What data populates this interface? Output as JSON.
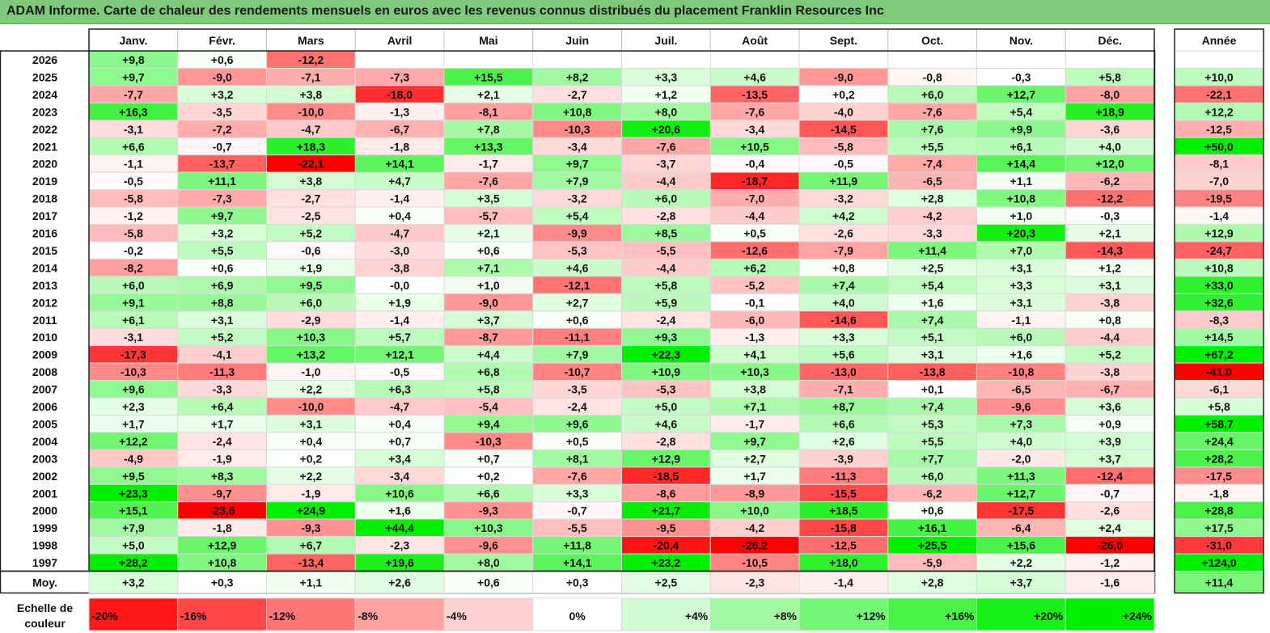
{
  "title": "ADAM Informe. Carte de chaleur des rendements mensuels en euros avec les revenus connus distribués du placement Franklin Resources Inc",
  "chart_data": {
    "type": "heatmap",
    "months": [
      "Janv.",
      "Févr.",
      "Mars",
      "Avril",
      "Mai",
      "Juin",
      "Juil.",
      "Août",
      "Sept.",
      "Oct.",
      "Nov.",
      "Déc."
    ],
    "year_header": "Année",
    "rows": [
      {
        "label": "2026",
        "values": [
          "+9,8",
          "+0,6",
          "-12,2",
          "",
          "",
          "",
          "",
          "",
          "",
          "",
          "",
          ""
        ],
        "year": ""
      },
      {
        "label": "2025",
        "values": [
          "+9,7",
          "-9,0",
          "-7,1",
          "-7,3",
          "+15,5",
          "+8,2",
          "+3,3",
          "+4,6",
          "-9,0",
          "-0,8",
          "-0,3",
          "+5,8"
        ],
        "year": "+10,0"
      },
      {
        "label": "2024",
        "values": [
          "-7,7",
          "+3,2",
          "+3,8",
          "-18,0",
          "+2,1",
          "-2,7",
          "+1,2",
          "-13,5",
          "+0,2",
          "+6,0",
          "+12,7",
          "-8,0"
        ],
        "year": "-22,1"
      },
      {
        "label": "2023",
        "values": [
          "+16,3",
          "-3,5",
          "-10,0",
          "-1,3",
          "-8,1",
          "+10,8",
          "+8,0",
          "-7,6",
          "-4,0",
          "-7,6",
          "+5,4",
          "+18,9"
        ],
        "year": "+12,2"
      },
      {
        "label": "2022",
        "values": [
          "-3,1",
          "-7,2",
          "-4,7",
          "-6,7",
          "+7,8",
          "-10,3",
          "+20,6",
          "-3,4",
          "-14,5",
          "+7,6",
          "+9,9",
          "-3,6"
        ],
        "year": "-12,5"
      },
      {
        "label": "2021",
        "values": [
          "+6,6",
          "-0,7",
          "+18,3",
          "-1,8",
          "+13,3",
          "-3,4",
          "-7,6",
          "+10,5",
          "-5,8",
          "+5,5",
          "+6,1",
          "+4,0"
        ],
        "year": "+50,0"
      },
      {
        "label": "2020",
        "values": [
          "-1,1",
          "-13,7",
          "-22,1",
          "+14,1",
          "-1,7",
          "+9,7",
          "-3,7",
          "-0,4",
          "-0,5",
          "-7,4",
          "+14,4",
          "+12,0"
        ],
        "year": "-8,1"
      },
      {
        "label": "2019",
        "values": [
          "-0,5",
          "+11,1",
          "+3,8",
          "+4,7",
          "-7,6",
          "+7,9",
          "-4,4",
          "-18,7",
          "+11,9",
          "-6,5",
          "+1,1",
          "-6,2"
        ],
        "year": "-7,0"
      },
      {
        "label": "2018",
        "values": [
          "-5,8",
          "-7,3",
          "-2,7",
          "-1,4",
          "+3,5",
          "-3,2",
          "+6,0",
          "-7,0",
          "-3,2",
          "+2,8",
          "+10,8",
          "-12,2"
        ],
        "year": "-19,5"
      },
      {
        "label": "2017",
        "values": [
          "-1,2",
          "+9,7",
          "-2,5",
          "+0,4",
          "-5,7",
          "+5,4",
          "-2,8",
          "-4,4",
          "+4,2",
          "-4,2",
          "+1,0",
          "-0,3"
        ],
        "year": "-1,4"
      },
      {
        "label": "2016",
        "values": [
          "-5,8",
          "+3,2",
          "+5,2",
          "-4,7",
          "+2,1",
          "-9,9",
          "+8,5",
          "+0,5",
          "-2,6",
          "-3,3",
          "+20,3",
          "+2,1"
        ],
        "year": "+12,9"
      },
      {
        "label": "2015",
        "values": [
          "-0,2",
          "+5,5",
          "-0,6",
          "-3,0",
          "+0,6",
          "-5,3",
          "-5,5",
          "-12,6",
          "-7,9",
          "+11,4",
          "+7,0",
          "-14,3"
        ],
        "year": "-24,7"
      },
      {
        "label": "2014",
        "values": [
          "-8,2",
          "+0,6",
          "+1,9",
          "-3,8",
          "+7,1",
          "+4,6",
          "-4,4",
          "+6,2",
          "+0,8",
          "+2,5",
          "+3,1",
          "+1,2"
        ],
        "year": "+10,8"
      },
      {
        "label": "2013",
        "values": [
          "+6,0",
          "+6,9",
          "+9,5",
          "-0,0",
          "+1,0",
          "-12,1",
          "+5,8",
          "-5,2",
          "+7,4",
          "+5,4",
          "+3,3",
          "+3,1"
        ],
        "year": "+33,0"
      },
      {
        "label": "2012",
        "values": [
          "+9,1",
          "+8,8",
          "+6,0",
          "+1,9",
          "-9,0",
          "+2,7",
          "+5,9",
          "-0,1",
          "+4,0",
          "+1,6",
          "+3,1",
          "-3,8"
        ],
        "year": "+32,6"
      },
      {
        "label": "2011",
        "values": [
          "+6,1",
          "+3,1",
          "-2,9",
          "-1,4",
          "+3,7",
          "+0,6",
          "-2,4",
          "-6,0",
          "-14,6",
          "+7,4",
          "-1,1",
          "+0,8"
        ],
        "year": "-8,3"
      },
      {
        "label": "2010",
        "values": [
          "-3,1",
          "+5,2",
          "+10,3",
          "+5,7",
          "-8,7",
          "-11,1",
          "+9,3",
          "-1,3",
          "+3,3",
          "+5,1",
          "+6,0",
          "-4,4"
        ],
        "year": "+14,5"
      },
      {
        "label": "2009",
        "values": [
          "-17,3",
          "-4,1",
          "+13,2",
          "+12,1",
          "+4,4",
          "+7,9",
          "+22,3",
          "+4,1",
          "+5,6",
          "+3,1",
          "+1,6",
          "+5,2"
        ],
        "year": "+67,2"
      },
      {
        "label": "2008",
        "values": [
          "-10,3",
          "-11,3",
          "-1,0",
          "-0,5",
          "+6,8",
          "-10,7",
          "+10,9",
          "+10,3",
          "-13,0",
          "-13,8",
          "-10,8",
          "-3,8"
        ],
        "year": "-41,0"
      },
      {
        "label": "2007",
        "values": [
          "+9,6",
          "-3,3",
          "+2,2",
          "+6,3",
          "+5,8",
          "-3,5",
          "-5,3",
          "+3,8",
          "-7,1",
          "+0,1",
          "-6,5",
          "-6,7"
        ],
        "year": "-6,1"
      },
      {
        "label": "2006",
        "values": [
          "+2,3",
          "+6,4",
          "-10,0",
          "-4,7",
          "-5,4",
          "-2,4",
          "+5,0",
          "+7,1",
          "+8,7",
          "+7,4",
          "-9,6",
          "+3,6"
        ],
        "year": "+5,8"
      },
      {
        "label": "2005",
        "values": [
          "+1,7",
          "+1,7",
          "+3,1",
          "+0,4",
          "+9,4",
          "+9,6",
          "+4,6",
          "-1,7",
          "+6,6",
          "+5,3",
          "+7,3",
          "+0,9"
        ],
        "year": "+58,7"
      },
      {
        "label": "2004",
        "values": [
          "+12,2",
          "-2,4",
          "+0,4",
          "+0,7",
          "-10,3",
          "+0,5",
          "-2,8",
          "+9,7",
          "+2,6",
          "+5,5",
          "+4,0",
          "+3,9"
        ],
        "year": "+24,4"
      },
      {
        "label": "2003",
        "values": [
          "-4,9",
          "-1,9",
          "+0,2",
          "+3,4",
          "+0,7",
          "+8,1",
          "+12,9",
          "+2,7",
          "-3,9",
          "+7,7",
          "-2,0",
          "+3,7"
        ],
        "year": "+28,2"
      },
      {
        "label": "2002",
        "values": [
          "+9,5",
          "+8,3",
          "+2,2",
          "-3,4",
          "+0,2",
          "-7,6",
          "-18,5",
          "+1,7",
          "-11,3",
          "+6,0",
          "+11,3",
          "-12,4"
        ],
        "year": "-17,5"
      },
      {
        "label": "2001",
        "values": [
          "+23,3",
          "-9,7",
          "-1,9",
          "+10,6",
          "+6,6",
          "+3,3",
          "-8,6",
          "-8,9",
          "-15,5",
          "-6,2",
          "+12,7",
          "-0,7"
        ],
        "year": "-1,8"
      },
      {
        "label": "2000",
        "values": [
          "+15,1",
          "-23,6",
          "+24,9",
          "+1,6",
          "-9,3",
          "-0,7",
          "+21,7",
          "+10,0",
          "+18,5",
          "+0,6",
          "-17,5",
          "-2,6"
        ],
        "year": "+28,8"
      },
      {
        "label": "1999",
        "values": [
          "+7,9",
          "-1,8",
          "-9,3",
          "+44,4",
          "+10,3",
          "-5,5",
          "-9,5",
          "-4,2",
          "-15,8",
          "+16,1",
          "-6,4",
          "+2,4"
        ],
        "year": "+17,5"
      },
      {
        "label": "1998",
        "values": [
          "+5,0",
          "+12,9",
          "+6,7",
          "-2,3",
          "-9,6",
          "+11,8",
          "-20,4",
          "-26,2",
          "-12,5",
          "+25,5",
          "+15,6",
          "-26,0"
        ],
        "year": "-31,0"
      },
      {
        "label": "1997",
        "values": [
          "+28,2",
          "+10,8",
          "-13,4",
          "+19,6",
          "+8,0",
          "+14,1",
          "+23,2",
          "-10,5",
          "+18,0",
          "-5,9",
          "+2,2",
          "-1,2"
        ],
        "year": "+124,0"
      }
    ],
    "average": {
      "label": "Moy.",
      "values": [
        "+3,2",
        "+0,3",
        "+1,1",
        "+2,6",
        "+0,6",
        "+0,3",
        "+2,5",
        "-2,3",
        "-1,4",
        "+2,8",
        "+3,7",
        "-1,6"
      ],
      "year": "+11,4"
    },
    "scale": {
      "label_line1": "Echelle de",
      "label_line2": "couleur",
      "steps": [
        "-20%",
        "-16%",
        "-12%",
        "-8%",
        "-4%",
        "0%",
        "+4%",
        "+8%",
        "+12%",
        "+16%",
        "+20%",
        "+24%"
      ],
      "step_values": [
        -20,
        -16,
        -12,
        -8,
        -4,
        0,
        4,
        8,
        12,
        16,
        20,
        24
      ]
    },
    "colors": {
      "negative": "#ff0000",
      "positive": "#00ee00",
      "neutral": "#ffffff",
      "title_bg": "#7ec97a"
    }
  }
}
